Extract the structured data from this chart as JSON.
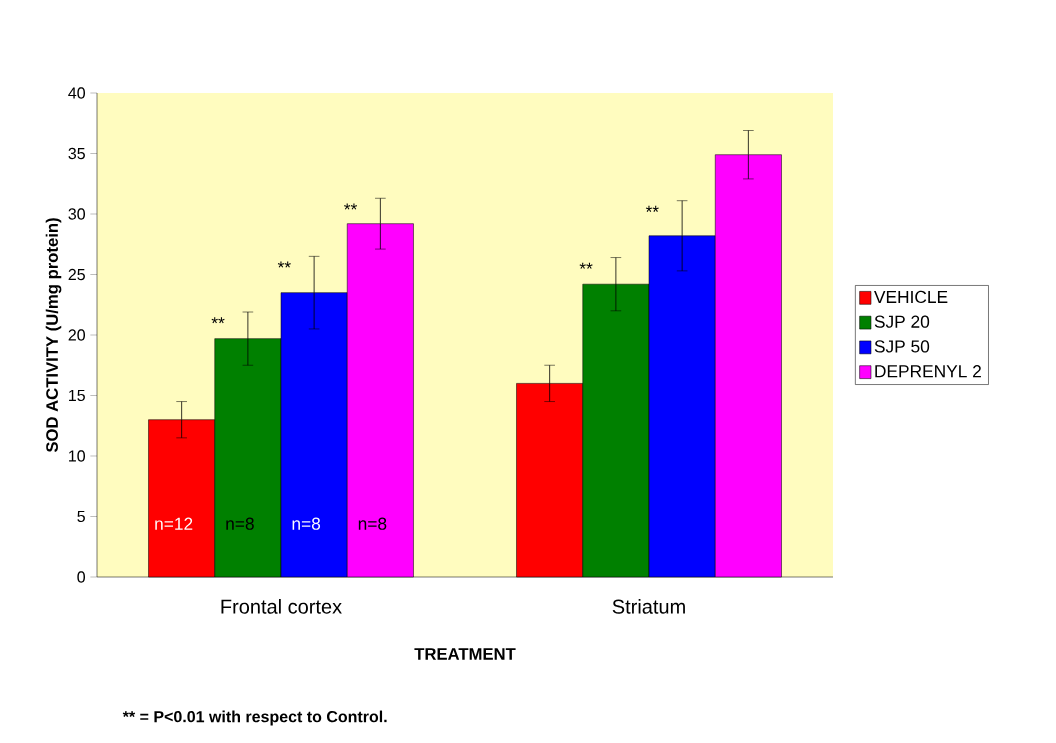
{
  "chart_data": {
    "type": "bar",
    "xlabel": "TREATMENT",
    "ylabel": "SOD ACTIVITY (U/mg protein)",
    "categories": [
      "Frontal cortex",
      "Striatum"
    ],
    "series": [
      {
        "name": "VEHICLE",
        "color": "#ff0000",
        "values": [
          13,
          16
        ],
        "errors": [
          1.5,
          1.5
        ]
      },
      {
        "name": "SJP 20",
        "color": "#008000",
        "values": [
          19.7,
          24.2
        ],
        "errors": [
          2.2,
          2.2
        ]
      },
      {
        "name": "SJP 50",
        "color": "#0000ff",
        "values": [
          23.5,
          28.2
        ],
        "errors": [
          3,
          2.9
        ]
      },
      {
        "name": "DEPRENYL 2",
        "color": "#ff00ff",
        "values": [
          29.2,
          34.9
        ],
        "errors": [
          2.1,
          2
        ]
      }
    ],
    "ylim": [
      0,
      40
    ],
    "yticks": [
      0,
      5,
      10,
      15,
      20,
      25,
      30,
      35,
      40
    ],
    "grid": false,
    "legend": "right",
    "annotations": [
      "n=12",
      "n=8",
      "n=8",
      "n=8",
      "**",
      "**",
      "**",
      "**",
      "**",
      "** = P<0.01 with respect to Control."
    ]
  }
}
